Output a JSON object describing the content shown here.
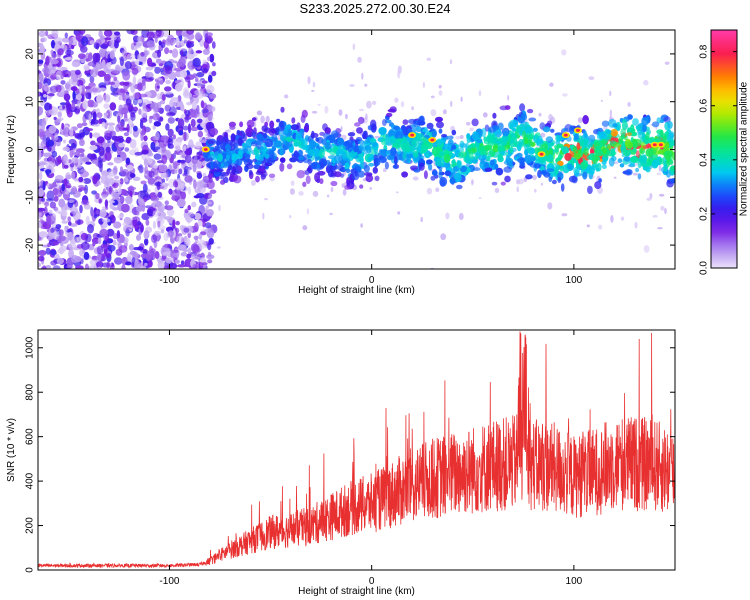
{
  "page": {
    "title": "S233.2025.272.00.30.E24"
  },
  "colors": {
    "snr_line": "#e83030",
    "axis": "#000000",
    "background": "#ffffff"
  },
  "chart_data": [
    {
      "type": "heatmap",
      "id": "spectrogram",
      "title": "S233.2025.272.00.30.E24",
      "xlabel": "Height of straight line (km)",
      "ylabel": "Frequency (Hz)",
      "xlim": [
        -165,
        150
      ],
      "ylim": [
        -25,
        25
      ],
      "x_ticks": [
        -100,
        0,
        100
      ],
      "x_tick_labels": [
        "-100",
        "0",
        "100"
      ],
      "y_ticks": [
        -20,
        -10,
        0,
        10,
        20
      ],
      "y_tick_labels": [
        "-20",
        "-10",
        "0",
        "10",
        "20"
      ],
      "colorbar": {
        "label": "Normalized spectral amplitude",
        "range": [
          0.0,
          0.88
        ],
        "ticks": [
          0.0,
          0.2,
          0.4,
          0.6,
          0.8
        ],
        "tick_labels": [
          "0.0",
          "0.2",
          "0.4",
          "0.6",
          "0.8"
        ]
      },
      "description_values": {
        "noise_region_x": [
          -165,
          -82
        ],
        "signal_band_center_hz": 0,
        "signal_band_halfwidth_hz": 5,
        "peak_amplitude_x": [
          96,
          140
        ]
      }
    },
    {
      "type": "line",
      "id": "snr",
      "title": "",
      "xlabel": "Height of straight line (km)",
      "ylabel": "SNR (10 * v/v)",
      "xlim": [
        -165,
        150
      ],
      "ylim": [
        0,
        1080
      ],
      "x_ticks": [
        -100,
        0,
        100
      ],
      "x_tick_labels": [
        "-100",
        "0",
        "100"
      ],
      "y_ticks": [
        0,
        200,
        400,
        600,
        800,
        1000
      ],
      "y_tick_labels": [
        "0",
        "200",
        "400",
        "600",
        "800",
        "1000"
      ],
      "series": [
        {
          "name": "SNR",
          "x": [
            -165,
            -140,
            -120,
            -100,
            -85,
            -80,
            -70,
            -60,
            -50,
            -40,
            -30,
            -20,
            -10,
            0,
            10,
            20,
            30,
            40,
            50,
            60,
            70,
            75,
            80,
            90,
            100,
            110,
            120,
            130,
            140,
            150
          ],
          "values": [
            20,
            20,
            20,
            20,
            25,
            40,
            90,
            130,
            170,
            180,
            200,
            240,
            280,
            300,
            340,
            380,
            410,
            430,
            450,
            470,
            480,
            520,
            470,
            460,
            420,
            440,
            480,
            480,
            470,
            440
          ]
        }
      ]
    }
  ]
}
